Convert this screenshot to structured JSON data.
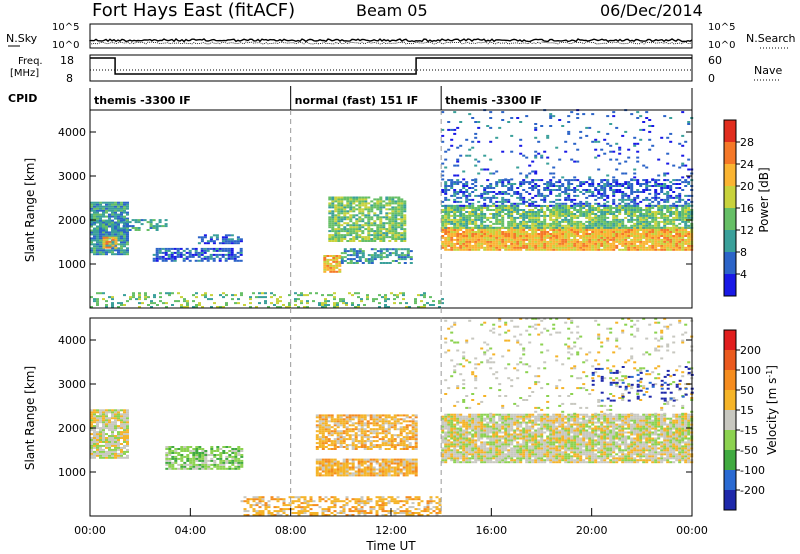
{
  "header": {
    "station": "Fort Hays East (fitACF)",
    "beam": "Beam 05",
    "date": "06/Dec/2014"
  },
  "top_panel": {
    "left_label": "N.Sky",
    "right_label": "N.Search",
    "left_ticks": [
      "10^5",
      "10^0"
    ],
    "right_ticks": [
      "10^5",
      "10^0"
    ]
  },
  "freq_panel": {
    "left_label_line1": "Freq.",
    "left_label_line2": "[MHz]",
    "right_label": "Nave",
    "left_ticks": [
      "18",
      "8"
    ],
    "right_ticks": [
      "60",
      "0"
    ]
  },
  "cpid": {
    "label": "CPID",
    "segments": [
      {
        "text": "themis -3300 IF",
        "start_hour": 0
      },
      {
        "text": "normal (fast) 151 IF",
        "start_hour": 8
      },
      {
        "text": "themis -3300 IF",
        "start_hour": 14
      }
    ],
    "boundaries_hours": [
      8,
      14
    ]
  },
  "chart_data": [
    {
      "type": "heatmap",
      "name": "power",
      "ylabel": "Slant Range [km]",
      "y_ticks": [
        1000,
        2000,
        3000,
        4000
      ],
      "ylim": [
        0,
        4500
      ],
      "xlim_hours": [
        0,
        24
      ],
      "colorbar_label": "Power [dB]",
      "colorbar_ticks": [
        "4",
        "8",
        "12",
        "16",
        "20",
        "24",
        "28"
      ],
      "colorbar_colors": [
        "#1919e6",
        "#2c64c8",
        "#3aa09a",
        "#66bf66",
        "#c8d23c",
        "#fab432",
        "#f57828",
        "#e12d1e"
      ],
      "bands": [
        {
          "t0": 0.0,
          "t1": 1.5,
          "r0": 1200,
          "r1": 2400,
          "level": 2,
          "density": 0.9
        },
        {
          "t0": 0.5,
          "t1": 1.0,
          "r0": 1350,
          "r1": 1600,
          "level": 5,
          "density": 0.8
        },
        {
          "t0": 1.3,
          "t1": 3.0,
          "r0": 1750,
          "r1": 2000,
          "level": 2,
          "density": 0.6
        },
        {
          "t0": 2.5,
          "t1": 6.0,
          "r0": 1050,
          "r1": 1350,
          "level": 1,
          "density": 0.7
        },
        {
          "t0": 4.3,
          "t1": 6.0,
          "r0": 1450,
          "r1": 1650,
          "level": 1,
          "density": 0.6
        },
        {
          "t0": 9.5,
          "t1": 12.5,
          "r0": 1500,
          "r1": 2500,
          "level": 3,
          "density": 0.8
        },
        {
          "t0": 9.3,
          "t1": 10.0,
          "r0": 800,
          "r1": 1200,
          "level": 5,
          "density": 0.9
        },
        {
          "t0": 10.0,
          "t1": 12.8,
          "r0": 1000,
          "r1": 1350,
          "level": 2,
          "density": 0.6
        },
        {
          "t0": 14.0,
          "t1": 24.0,
          "r0": 1300,
          "r1": 1800,
          "level": 5,
          "density": 0.95
        },
        {
          "t0": 14.0,
          "t1": 24.0,
          "r0": 1800,
          "r1": 2300,
          "level": 3,
          "density": 0.8
        },
        {
          "t0": 14.0,
          "t1": 24.0,
          "r0": 2300,
          "r1": 2900,
          "level": 1,
          "density": 0.5
        },
        {
          "t0": 14.0,
          "t1": 24.0,
          "r0": 2900,
          "r1": 4500,
          "level": 1,
          "density": 0.08
        },
        {
          "t0": 0.0,
          "t1": 14.0,
          "r0": 0,
          "r1": 350,
          "level": 3,
          "density": 0.3
        }
      ]
    },
    {
      "type": "heatmap",
      "name": "velocity",
      "ylabel": "Slant Range [km]",
      "y_ticks": [
        1000,
        2000,
        3000,
        4000
      ],
      "ylim": [
        0,
        4500
      ],
      "xlim_hours": [
        0,
        24
      ],
      "xlabel": "Time UT",
      "x_ticks": [
        "00:00",
        "04:00",
        "08:00",
        "12:00",
        "16:00",
        "20:00",
        "00:00"
      ],
      "colorbar_label": "Velocity [m s^-1]",
      "colorbar_ticks": [
        "200",
        "100",
        "50",
        "15",
        "-15",
        "-50",
        "-100",
        "-200"
      ],
      "colorbar_colors": [
        "#1e28aa",
        "#2a6ad2",
        "#40aa40",
        "#8cd250",
        "#c8c8c0",
        "#f5b428",
        "#f58c1e",
        "#eb5a1e",
        "#e11e1e"
      ],
      "bands": [
        {
          "t0": 0.0,
          "t1": 1.5,
          "r0": 1300,
          "r1": 2400,
          "level": 4,
          "density": 0.9
        },
        {
          "t0": 3.0,
          "t1": 6.0,
          "r0": 1050,
          "r1": 1550,
          "level": 3,
          "density": 0.7
        },
        {
          "t0": 9.0,
          "t1": 13.0,
          "r0": 1500,
          "r1": 2300,
          "level": 5,
          "density": 0.75
        },
        {
          "t0": 9.0,
          "t1": 13.0,
          "r0": 900,
          "r1": 1300,
          "level": 5,
          "density": 0.85
        },
        {
          "t0": 14.0,
          "t1": 24.0,
          "r0": 1200,
          "r1": 2300,
          "level": 4,
          "density": 0.9
        },
        {
          "t0": 14.0,
          "t1": 24.0,
          "r0": 2300,
          "r1": 4500,
          "level": 4,
          "density": 0.1
        },
        {
          "t0": 20.0,
          "t1": 24.0,
          "r0": 2600,
          "r1": 3400,
          "level": 0,
          "density": 0.15
        },
        {
          "t0": 6.0,
          "t1": 14.0,
          "r0": 0,
          "r1": 450,
          "level": 5,
          "density": 0.5
        }
      ]
    }
  ]
}
